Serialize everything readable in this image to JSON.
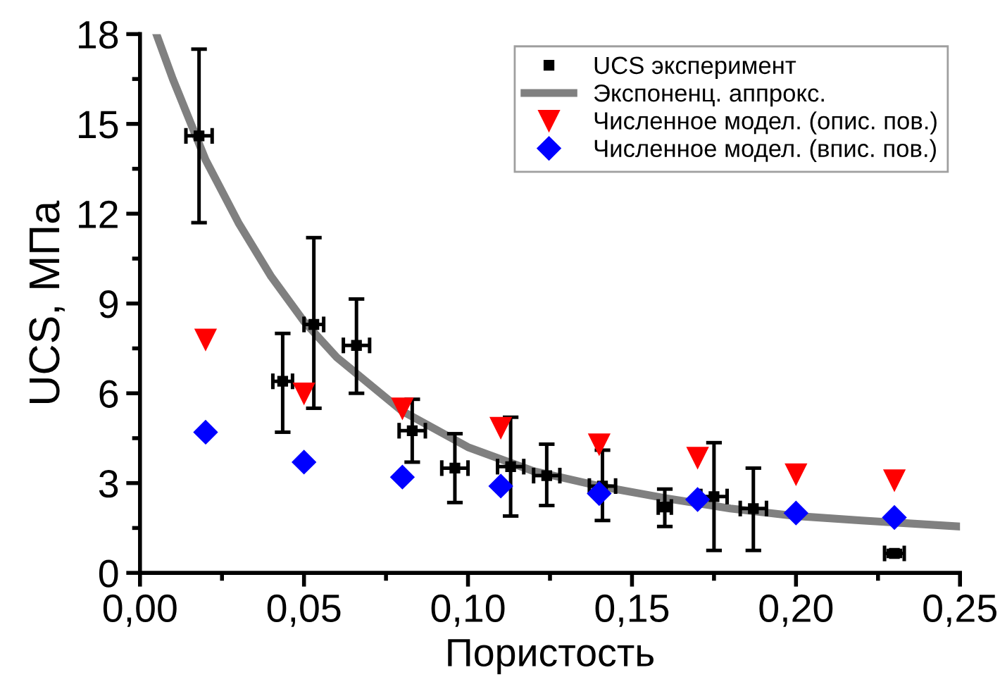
{
  "chart_data": {
    "type": "scatter",
    "xlabel": "Пористость",
    "ylabel": "UCS, МПа",
    "xlim": [
      0,
      0.25
    ],
    "ylim": [
      0,
      18
    ],
    "xticks": [
      {
        "value": 0,
        "label": "0,00"
      },
      {
        "value": 0.025,
        "label": null
      },
      {
        "value": 0.05,
        "label": "0,05"
      },
      {
        "value": 0.075,
        "label": null
      },
      {
        "value": 0.1,
        "label": "0,10"
      },
      {
        "value": 0.125,
        "label": null
      },
      {
        "value": 0.15,
        "label": "0,15"
      },
      {
        "value": 0.175,
        "label": null
      },
      {
        "value": 0.2,
        "label": "0,20"
      },
      {
        "value": 0.225,
        "label": null
      },
      {
        "value": 0.25,
        "label": "0,25"
      }
    ],
    "yticks": [
      0,
      {
        "value": 1.5,
        "label": null
      },
      3,
      {
        "value": 4.5,
        "label": null
      },
      6,
      {
        "value": 7.5,
        "label": null
      },
      9,
      {
        "value": 10.5,
        "label": null
      },
      12,
      {
        "value": 13.5,
        "label": null
      },
      15,
      {
        "value": 16.5,
        "label": null
      },
      18
    ],
    "grid": false,
    "legend": "top right",
    "series": [
      {
        "name": "UCS эксперимент",
        "marker": "square",
        "color": "#000000",
        "x": [
          0.018,
          0.0435,
          0.053,
          0.066,
          0.083,
          0.096,
          0.113,
          0.124,
          0.141,
          0.16,
          0.175,
          0.187,
          0.23
        ],
        "values": [
          14.6,
          6.4,
          8.3,
          7.6,
          4.75,
          3.5,
          3.55,
          3.25,
          2.9,
          2.2,
          2.55,
          2.15,
          0.65
        ],
        "errors": [
          [
            11.7,
            17.5
          ],
          [
            4.7,
            8.0
          ],
          [
            5.5,
            11.2
          ],
          [
            6.0,
            9.15
          ],
          [
            3.7,
            5.8
          ],
          [
            2.35,
            4.65
          ],
          [
            1.9,
            5.2
          ],
          [
            2.25,
            4.3
          ],
          [
            1.75,
            4.1
          ],
          [
            1.55,
            2.8
          ],
          [
            0.75,
            4.35
          ],
          [
            0.75,
            3.5
          ],
          [
            0.55,
            0.75
          ]
        ],
        "xerrors": [
          0.004,
          0.003,
          0.003,
          0.004,
          0.004,
          0.004,
          0.004,
          0.004,
          0.004,
          0.002,
          0.004,
          0.004,
          0.003
        ]
      },
      {
        "name": "Экспоненц. аппрокс.",
        "type": "line",
        "line_style": "solid",
        "marker": "none",
        "color": "#808080",
        "x": [
          0.005,
          0.01,
          0.02,
          0.03,
          0.04,
          0.05,
          0.06,
          0.08,
          0.1,
          0.12,
          0.14,
          0.16,
          0.18,
          0.2,
          0.22,
          0.25
        ],
        "values": [
          18.0,
          16.5,
          13.8,
          11.7,
          9.9,
          8.4,
          7.2,
          5.4,
          4.2,
          3.4,
          2.9,
          2.5,
          2.15,
          1.9,
          1.75,
          1.55
        ]
      },
      {
        "name": "Численное модел. (опис. пов.)",
        "marker": "triangle",
        "color": "#ff0000",
        "x": [
          0.02,
          0.05,
          0.08,
          0.11,
          0.14,
          0.17,
          0.2,
          0.23
        ],
        "values": [
          7.8,
          6.0,
          5.5,
          4.85,
          4.3,
          3.85,
          3.3,
          3.1
        ]
      },
      {
        "name": "Численное модел. (впис. пов.)",
        "marker": "diamond",
        "color": "#0000ff",
        "x": [
          0.02,
          0.05,
          0.08,
          0.11,
          0.14,
          0.17,
          0.2,
          0.23
        ],
        "values": [
          4.7,
          3.7,
          3.2,
          2.9,
          2.65,
          2.45,
          2.0,
          1.85
        ]
      }
    ]
  }
}
